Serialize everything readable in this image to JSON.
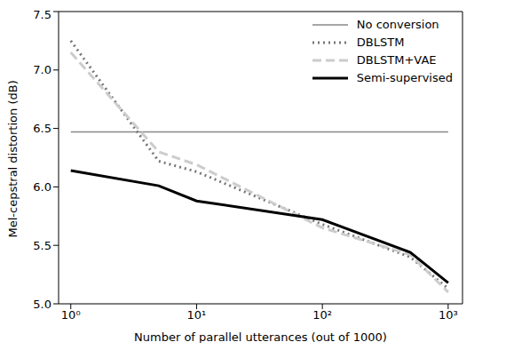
{
  "chart_data": {
    "type": "line",
    "x": [
      1,
      5,
      10,
      100,
      500,
      1000
    ],
    "xlabel": "Number of parallel utterances (out of 1000)",
    "ylabel": "Mel-cepstral distortion (dB)",
    "log": "x",
    "grid": false,
    "legend": "upper right",
    "xlim": [
      0.8,
      1300
    ],
    "xticks": [
      {
        "value": 1,
        "label": "10⁰"
      },
      {
        "value": 10,
        "label": "10¹"
      },
      {
        "value": 100,
        "label": "10²"
      },
      {
        "value": 1000,
        "label": "10³"
      }
    ],
    "ylim": [
      5.0,
      7.5
    ],
    "yticks": [
      {
        "value": 5,
        "label": "5.0"
      },
      5.5,
      {
        "value": 6,
        "label": "6.0"
      },
      6.5,
      {
        "value": 7,
        "label": "7.0"
      },
      7.5
    ],
    "series": [
      {
        "name": "No conversion",
        "color": "#888888",
        "line_style": "solid",
        "values": [
          6.47,
          6.47,
          6.47,
          6.47,
          6.47,
          6.47
        ]
      },
      {
        "name": "DBLSTM",
        "color": "#777777",
        "line_style": "dotted",
        "values": [
          7.25,
          6.22,
          6.13,
          5.68,
          5.4,
          5.13
        ]
      },
      {
        "name": "DBLSTM+VAE",
        "color": "#cccccc",
        "line_style": "dashed",
        "values": [
          7.15,
          6.3,
          6.19,
          5.65,
          5.42,
          5.1
        ]
      },
      {
        "name": "Semi-supervised",
        "color": "#000000",
        "line_style": "solid",
        "values": [
          6.14,
          6.01,
          5.88,
          5.72,
          5.44,
          5.18
        ]
      }
    ]
  }
}
